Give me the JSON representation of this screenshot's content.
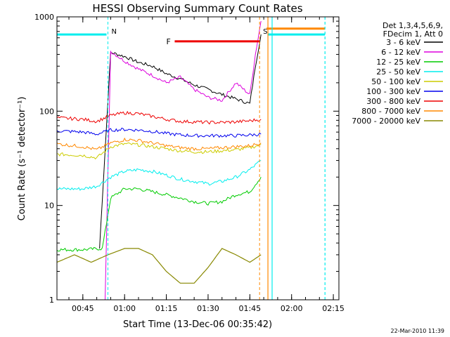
{
  "chart_data": {
    "type": "line",
    "title": "HESSI Observing Summary Count Rates",
    "xlabel": "Start Time (13-Dec-06 00:35:42)",
    "ylabel": "Count Rate (s⁻¹ detector⁻¹)",
    "y_scale": "log",
    "ylim": [
      1,
      1000
    ],
    "xlim": [
      "00:35:42",
      "02:17:00"
    ],
    "x_ticks": [
      "00:45",
      "01:00",
      "01:15",
      "01:30",
      "01:45",
      "02:00",
      "02:15"
    ],
    "y_ticks": [
      "1",
      "10",
      "100",
      "1000"
    ],
    "legend_header": [
      "Det 1,3,4,5,6,9,",
      "FDecim 1, Att 0"
    ],
    "legend_position": "right",
    "series": [
      {
        "name": "3 - 6 keV",
        "color": "#000000",
        "x": [
          "00:51:00",
          "00:55:00",
          "01:00:00",
          "01:05:00",
          "01:10:00",
          "01:15:00",
          "01:20:00",
          "01:25:00",
          "01:30:00",
          "01:35:00",
          "01:40:00",
          "01:45:00",
          "01:47:00",
          "01:49:00"
        ],
        "y": [
          3.5,
          420,
          380,
          330,
          300,
          250,
          220,
          190,
          170,
          150,
          135,
          120,
          300,
          650
        ]
      },
      {
        "name": "6 - 12 keV",
        "color": "#dd00dd",
        "x": [
          "00:53:00",
          "00:55:00",
          "01:00:00",
          "01:05:00",
          "01:10:00",
          "01:15:00",
          "01:20:00",
          "01:25:00",
          "01:30:00",
          "01:35:00",
          "01:40:00",
          "01:45:00",
          "01:47:00",
          "01:49:00"
        ],
        "y": [
          1.0,
          430,
          340,
          280,
          240,
          200,
          230,
          170,
          140,
          130,
          200,
          150,
          400,
          900
        ]
      },
      {
        "name": "12 - 25 keV",
        "color": "#00cc00",
        "x": [
          "00:35:42",
          "00:45:00",
          "00:52:00",
          "00:55:00",
          "01:00:00",
          "01:05:00",
          "01:10:00",
          "01:15:00",
          "01:20:00",
          "01:25:00",
          "01:30:00",
          "01:35:00",
          "01:40:00",
          "01:45:00",
          "01:49:00"
        ],
        "y": [
          3.4,
          3.4,
          3.5,
          12,
          15,
          15,
          14,
          13,
          12,
          11,
          10.5,
          11,
          13,
          14,
          20
        ]
      },
      {
        "name": "25 - 50 keV",
        "color": "#00eeee",
        "x": [
          "00:35:42",
          "00:45:00",
          "00:50:00",
          "00:55:00",
          "01:00:00",
          "01:05:00",
          "01:10:00",
          "01:15:00",
          "01:20:00",
          "01:25:00",
          "01:30:00",
          "01:35:00",
          "01:40:00",
          "01:45:00",
          "01:49:00"
        ],
        "y": [
          15,
          15,
          16,
          20,
          23,
          24,
          23,
          21,
          19,
          18,
          17,
          18,
          20,
          24,
          30
        ]
      },
      {
        "name": "50 - 100 keV",
        "color": "#cccc00",
        "x": [
          "00:35:42",
          "00:45:00",
          "00:50:00",
          "00:55:00",
          "01:00:00",
          "01:05:00",
          "01:10:00",
          "01:15:00",
          "01:20:00",
          "01:25:00",
          "01:30:00",
          "01:35:00",
          "01:40:00",
          "01:45:00",
          "01:49:00"
        ],
        "y": [
          35,
          34,
          32,
          42,
          45,
          44,
          42,
          40,
          38,
          37,
          37,
          38,
          39,
          41,
          44
        ]
      },
      {
        "name": "100 - 300 keV",
        "color": "#0000ee",
        "x": [
          "00:35:42",
          "00:45:00",
          "00:50:00",
          "00:55:00",
          "01:00:00",
          "01:05:00",
          "01:10:00",
          "01:15:00",
          "01:20:00",
          "01:25:00",
          "01:30:00",
          "01:35:00",
          "01:40:00",
          "01:45:00",
          "01:49:00"
        ],
        "y": [
          62,
          60,
          57,
          63,
          64,
          63,
          61,
          58,
          56,
          55,
          55,
          55,
          55,
          56,
          57
        ]
      },
      {
        "name": "300 - 800 keV",
        "color": "#ee0000",
        "x": [
          "00:35:42",
          "00:45:00",
          "00:50:00",
          "00:55:00",
          "01:00:00",
          "01:05:00",
          "01:10:00",
          "01:15:00",
          "01:20:00",
          "01:25:00",
          "01:30:00",
          "01:35:00",
          "01:40:00",
          "01:45:00",
          "01:49:00"
        ],
        "y": [
          85,
          82,
          78,
          90,
          96,
          94,
          88,
          82,
          78,
          77,
          76,
          76,
          77,
          79,
          82
        ]
      },
      {
        "name": "800 - 7000 keV",
        "color": "#ff8800",
        "x": [
          "00:35:42",
          "00:45:00",
          "00:50:00",
          "00:55:00",
          "01:00:00",
          "01:05:00",
          "01:10:00",
          "01:15:00",
          "01:20:00",
          "01:25:00",
          "01:30:00",
          "01:35:00",
          "01:40:00",
          "01:45:00",
          "01:49:00"
        ],
        "y": [
          45,
          42,
          39,
          46,
          50,
          49,
          46,
          43,
          41,
          40,
          40,
          41,
          42,
          43,
          46
        ]
      },
      {
        "name": "7000 - 20000 keV",
        "color": "#888800",
        "x": [
          "00:35:42",
          "00:42:00",
          "00:48:00",
          "00:54:00",
          "01:00:00",
          "01:05:00",
          "01:10:00",
          "01:15:00",
          "01:20:00",
          "01:25:00",
          "01:30:00",
          "01:35:00",
          "01:40:00",
          "01:45:00",
          "01:49:00"
        ],
        "y": [
          2.5,
          3,
          2.5,
          3,
          3.5,
          3.5,
          3,
          2,
          1.5,
          1.5,
          2.2,
          3.5,
          3,
          2.5,
          3
        ]
      }
    ],
    "annotations": [
      {
        "label": "N",
        "x": "00:54:00",
        "color": "#00eeee"
      },
      {
        "label": "F",
        "x_start": "01:18:00",
        "x_end": "01:48:30",
        "y": 550,
        "color": "#ee0000"
      },
      {
        "label": "S",
        "x": "01:48:30",
        "color": "#ff8800"
      }
    ],
    "cyan_bars": [
      {
        "x_start": "00:35:42",
        "x_end": "00:53:30",
        "y": 650
      },
      {
        "x_start": "01:51:30",
        "x_end": "02:12:00",
        "y": 650
      }
    ],
    "orange_bar": {
      "x_start": "01:51:00",
      "x_end": "02:12:00",
      "y": 750
    }
  },
  "timestamp": "22-Mar-2010 11:39"
}
